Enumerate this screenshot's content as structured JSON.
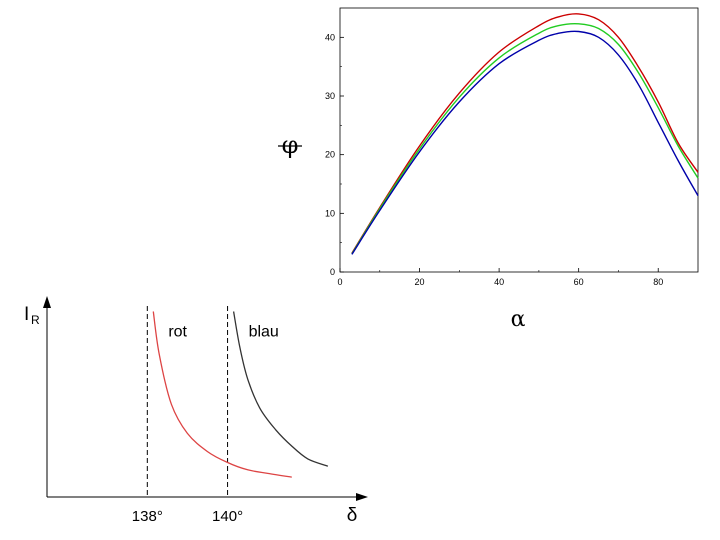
{
  "chart_data": [
    {
      "type": "line",
      "xlabel": "α",
      "ylabel": "φ",
      "xlim": [
        0,
        90
      ],
      "ylim": [
        0,
        45
      ],
      "xticks": [
        "0",
        "20",
        "40",
        "60",
        "80"
      ],
      "yticks": [
        "0",
        "10",
        "20",
        "30",
        "40"
      ],
      "series": [
        {
          "color": "#cc0000",
          "x": [
            3,
            10,
            20,
            30,
            40,
            50,
            55,
            60,
            65,
            70,
            75,
            80,
            85,
            90
          ],
          "y": [
            3.2,
            11,
            21.5,
            30.5,
            37.5,
            42,
            43.5,
            44,
            43,
            40,
            35,
            29,
            22,
            17
          ]
        },
        {
          "color": "#22cc22",
          "x": [
            3,
            10,
            20,
            30,
            40,
            50,
            55,
            60,
            65,
            70,
            75,
            80,
            85,
            90
          ],
          "y": [
            3.1,
            10.8,
            21,
            29.8,
            36.5,
            40.7,
            42,
            42.3,
            41.5,
            38.8,
            34,
            28,
            21.5,
            16
          ]
        },
        {
          "color": "#0000aa",
          "x": [
            3,
            10,
            20,
            30,
            40,
            50,
            55,
            60,
            65,
            70,
            75,
            80,
            85,
            90
          ],
          "y": [
            3,
            10.5,
            20.5,
            29,
            35.5,
            39.5,
            40.7,
            41,
            40,
            37,
            32,
            25.5,
            19,
            13
          ]
        }
      ]
    },
    {
      "type": "line",
      "ylabel": "I",
      "ylabel_sub": "R",
      "xlabel": "δ",
      "xtick_labels": [
        "138°",
        "140°"
      ],
      "xtick_values": [
        138,
        140
      ],
      "xlim": [
        135.5,
        143.5
      ],
      "ylim": [
        0,
        1
      ],
      "series": [
        {
          "name": "rot",
          "color": "#dd4444",
          "x": [
            138.15,
            138.3,
            138.6,
            139.0,
            139.5,
            140.0,
            140.5,
            141.0,
            141.6
          ],
          "y": [
            0.97,
            0.73,
            0.46,
            0.3,
            0.2,
            0.14,
            0.1,
            0.08,
            0.06
          ]
        },
        {
          "name": "blau",
          "color": "#333333",
          "x": [
            140.15,
            140.3,
            140.5,
            140.8,
            141.2,
            141.6,
            142.0,
            142.5
          ],
          "y": [
            0.97,
            0.78,
            0.6,
            0.44,
            0.32,
            0.23,
            0.16,
            0.12
          ]
        }
      ],
      "vlines": [
        138,
        140
      ]
    }
  ]
}
